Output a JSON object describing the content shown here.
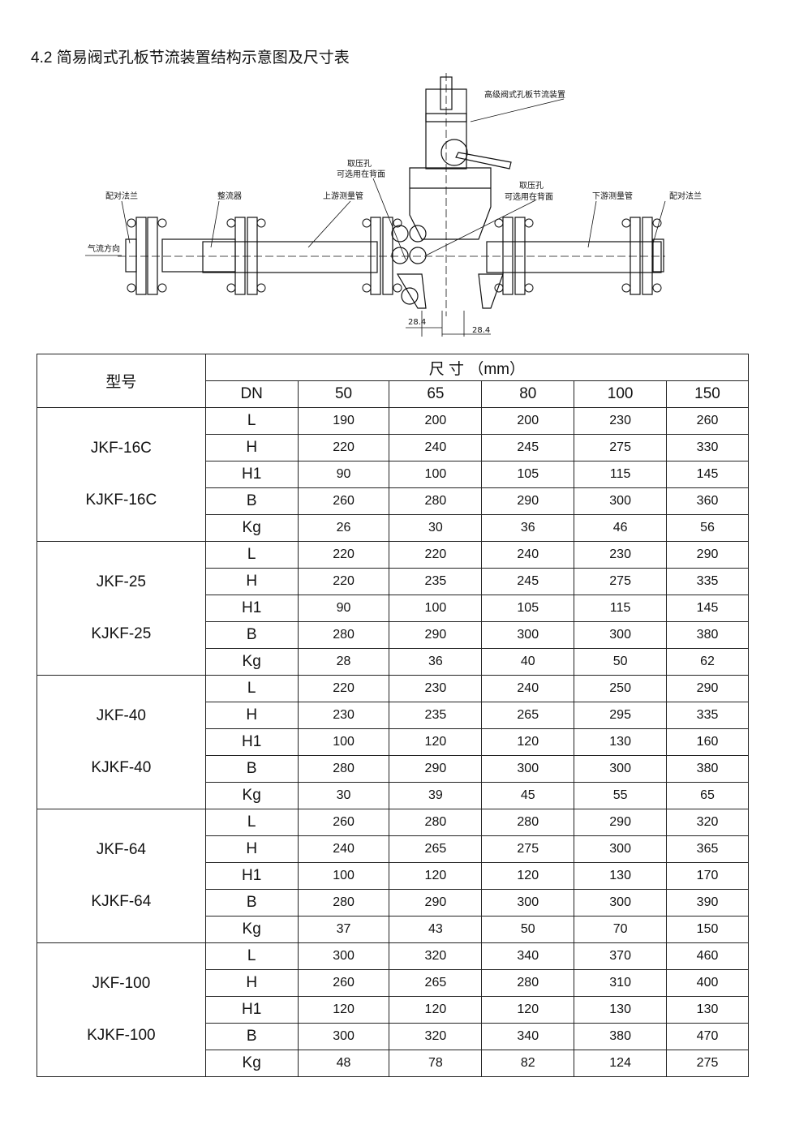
{
  "title": "4.2  简易阀式孔板节流装置结构示意图及尺寸表",
  "diagram": {
    "labels": {
      "device": "高级阀式孔板节流装置",
      "tap1_a": "取压孔",
      "tap1_b": "可选用在背面",
      "tap2_a": "取压孔",
      "tap2_b": "可选用在背面",
      "flange_left": "配对法兰",
      "straightener": "整流器",
      "upstream": "上游测量管",
      "downstream": "下游测量管",
      "flange_right": "配对法兰",
      "flow": "气流方向",
      "dim1": "28.4",
      "dim2": "28.4"
    }
  },
  "table": {
    "model_header": "型号",
    "dims_header": "尺 寸 （mm）",
    "dn_label": "DN",
    "dn": [
      "50",
      "65",
      "80",
      "100",
      "150"
    ],
    "params": [
      "L",
      "H",
      "H1",
      "B",
      "Kg"
    ],
    "groups": [
      {
        "models": [
          "JKF-16C",
          "KJKF-16C"
        ],
        "rows": [
          [
            "190",
            "200",
            "200",
            "230",
            "260"
          ],
          [
            "220",
            "240",
            "245",
            "275",
            "330"
          ],
          [
            "90",
            "100",
            "105",
            "115",
            "145"
          ],
          [
            "260",
            "280",
            "290",
            "300",
            "360"
          ],
          [
            "26",
            "30",
            "36",
            "46",
            "56"
          ]
        ]
      },
      {
        "models": [
          "JKF-25",
          "KJKF-25"
        ],
        "rows": [
          [
            "220",
            "220",
            "240",
            "230",
            "290"
          ],
          [
            "220",
            "235",
            "245",
            "275",
            "335"
          ],
          [
            "90",
            "100",
            "105",
            "115",
            "145"
          ],
          [
            "280",
            "290",
            "300",
            "300",
            "380"
          ],
          [
            "28",
            "36",
            "40",
            "50",
            "62"
          ]
        ]
      },
      {
        "models": [
          "JKF-40",
          "KJKF-40"
        ],
        "rows": [
          [
            "220",
            "230",
            "240",
            "250",
            "290"
          ],
          [
            "230",
            "235",
            "265",
            "295",
            "335"
          ],
          [
            "100",
            "120",
            "120",
            "130",
            "160"
          ],
          [
            "280",
            "290",
            "300",
            "300",
            "380"
          ],
          [
            "30",
            "39",
            "45",
            "55",
            "65"
          ]
        ]
      },
      {
        "models": [
          "JKF-64",
          "KJKF-64"
        ],
        "rows": [
          [
            "260",
            "280",
            "280",
            "290",
            "320"
          ],
          [
            "240",
            "265",
            "275",
            "300",
            "365"
          ],
          [
            "100",
            "120",
            "120",
            "130",
            "170"
          ],
          [
            "280",
            "290",
            "300",
            "300",
            "390"
          ],
          [
            "37",
            "43",
            "50",
            "70",
            "150"
          ]
        ]
      },
      {
        "models": [
          "JKF-100",
          "KJKF-100"
        ],
        "rows": [
          [
            "300",
            "320",
            "340",
            "370",
            "460"
          ],
          [
            "260",
            "265",
            "280",
            "310",
            "400"
          ],
          [
            "120",
            "120",
            "120",
            "130",
            "130"
          ],
          [
            "300",
            "320",
            "340",
            "380",
            "470"
          ],
          [
            "48",
            "78",
            "82",
            "124",
            "275"
          ]
        ]
      }
    ]
  }
}
